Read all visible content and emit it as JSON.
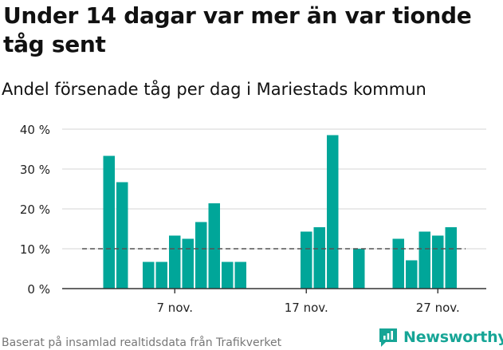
{
  "header": {
    "title": "Under 14 dagar var mer än var tionde tåg sent",
    "subtitle": "Andel försenade tåg per dag i Mariestads kommun"
  },
  "footer": {
    "source": "Baserat på insamlad realtidsdata från Trafikverket",
    "brand": "Newsworthy"
  },
  "colors": {
    "bar": "#00a699",
    "grid": "#dddddd",
    "axis": "#333333",
    "reference_line": "#555555",
    "brand": "#16a596"
  },
  "icons": {
    "brand_logo": "newsworthy-logo-icon"
  },
  "chart_data": {
    "type": "bar",
    "title": "Andel försenade tåg per dag i Mariestads kommun",
    "xlabel": "",
    "ylabel": "",
    "categories": [
      "1 nov.",
      "2 nov.",
      "3 nov.",
      "4 nov.",
      "5 nov.",
      "6 nov.",
      "7 nov.",
      "8 nov.",
      "9 nov.",
      "10 nov.",
      "11 nov.",
      "12 nov.",
      "13 nov.",
      "14 nov.",
      "15 nov.",
      "16 nov.",
      "17 nov.",
      "18 nov.",
      "19 nov.",
      "20 nov.",
      "21 nov.",
      "22 nov.",
      "23 nov.",
      "24 nov.",
      "25 nov.",
      "26 nov.",
      "27 nov.",
      "28 nov.",
      "29 nov."
    ],
    "values": [
      null,
      33.3,
      26.7,
      null,
      6.7,
      6.7,
      13.3,
      12.5,
      16.7,
      21.4,
      6.7,
      6.7,
      null,
      null,
      null,
      null,
      14.3,
      15.4,
      38.5,
      null,
      10.0,
      null,
      null,
      12.5,
      7.1,
      14.3,
      13.3,
      15.4,
      null
    ],
    "ylim": [
      0,
      40
    ],
    "yticks": [
      0,
      10,
      20,
      30,
      40
    ],
    "ytick_labels": [
      "0 %",
      "10 %",
      "20 %",
      "30 %",
      "40 %"
    ],
    "xtick_labels": [
      {
        "label": "7 nov.",
        "category": "7 nov."
      },
      {
        "label": "17 nov.",
        "category": "17 nov."
      },
      {
        "label": "27 nov.",
        "category": "27 nov."
      }
    ],
    "reference_line": {
      "value": 10,
      "style": "dashed"
    },
    "grid": true,
    "legend": "none"
  }
}
